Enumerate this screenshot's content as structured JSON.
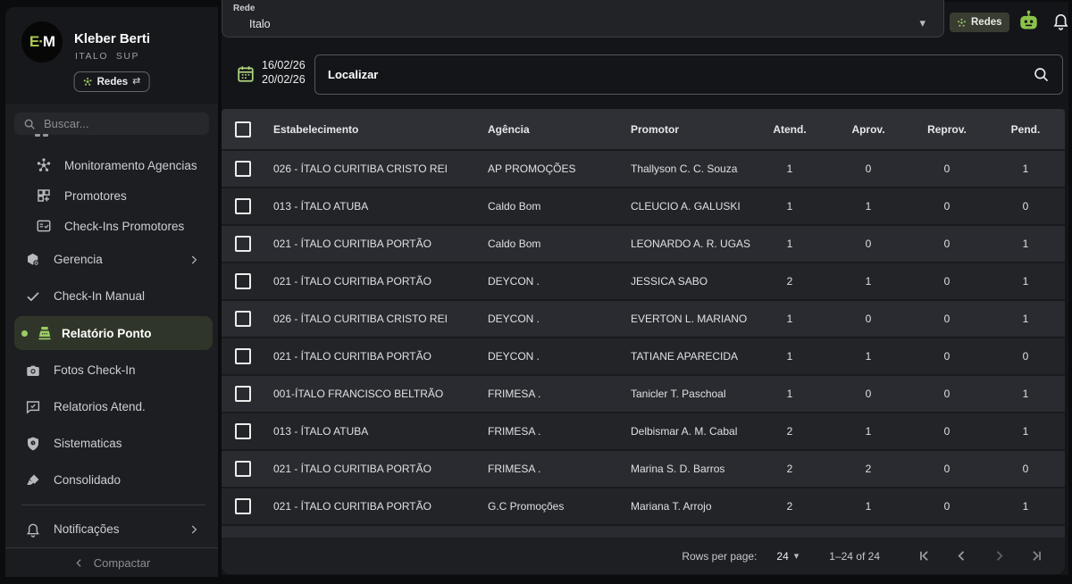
{
  "app": {
    "accent_green": "#9ccc65",
    "active_item_bg": "#2f3629"
  },
  "profile": {
    "name": "Kleber Berti",
    "role": "ITALO  SUP",
    "avatar_left": "E",
    "avatar_dot": "·",
    "avatar_right": "M",
    "badge_label": "Redes",
    "badge_swap_icon": "⇄"
  },
  "sidebar": {
    "search_placeholder": "Buscar...",
    "items": [
      {
        "label": "Monitoramento Agencias",
        "icon": "hub-icon",
        "sub": true
      },
      {
        "label": "Promotores",
        "icon": "widgets-icon",
        "sub": true
      },
      {
        "label": "Check-Ins Promotores",
        "icon": "fact-check-icon",
        "sub": true
      },
      {
        "label": "Gerencia",
        "icon": "cube-icon",
        "chevron": true
      },
      {
        "label": "Check-In Manual",
        "icon": "check-icon"
      },
      {
        "label": "Relatório Ponto",
        "icon": "pos-icon",
        "active": true
      },
      {
        "label": "Fotos Check-In",
        "icon": "camera-icon"
      },
      {
        "label": "Relatorios Atend.",
        "icon": "chat-icon"
      },
      {
        "label": "Sistematicas",
        "icon": "shield-icon"
      },
      {
        "label": "Consolidado",
        "icon": "broom-icon"
      },
      {
        "label": "Notificações",
        "icon": "bell-icon",
        "chevron": true,
        "divider_before": true
      }
    ],
    "collapse_label": "Compactar"
  },
  "topbar": {
    "select_label": "Rede",
    "select_value": "Italo",
    "select_caret": "▾",
    "chip_label": "Redes"
  },
  "filterbar": {
    "date_start": "16/02/26",
    "date_end": "20/02/26",
    "search_label": "Localizar"
  },
  "table": {
    "columns": [
      "Estabelecimento",
      "Agência",
      "Promotor",
      "Atend.",
      "Aprov.",
      "Reprov.",
      "Pend."
    ],
    "rows": [
      [
        "026 - ÍTALO CURITIBA CRISTO REI",
        "AP PROMOÇÕES",
        "Thallyson C. C. Souza",
        "1",
        "0",
        "0",
        "1"
      ],
      [
        "013 - ÍTALO ATUBA",
        "Caldo Bom",
        "CLEUCIO A. GALUSKI",
        "1",
        "1",
        "0",
        "0"
      ],
      [
        "021 - ÍTALO CURITIBA PORTÃO",
        "Caldo Bom",
        "LEONARDO A. R. UGAS",
        "1",
        "0",
        "0",
        "1"
      ],
      [
        "021 - ÍTALO CURITIBA PORTÃO",
        "DEYCON .",
        "JESSICA SABO",
        "2",
        "1",
        "0",
        "1"
      ],
      [
        "026 - ÍTALO CURITIBA CRISTO REI",
        "DEYCON .",
        "EVERTON L. MARIANO",
        "1",
        "0",
        "0",
        "1"
      ],
      [
        "021 - ÍTALO CURITIBA PORTÃO",
        "DEYCON .",
        "TATIANE APARECIDA",
        "1",
        "1",
        "0",
        "0"
      ],
      [
        "001-ÍTALO FRANCISCO BELTRÃO",
        "FRIMESA .",
        "Tanicler T. Paschoal",
        "1",
        "0",
        "0",
        "1"
      ],
      [
        "013 - ÍTALO ATUBA",
        "FRIMESA .",
        "Delbismar A. M. Cabal",
        "2",
        "1",
        "0",
        "1"
      ],
      [
        "021 - ÍTALO CURITIBA PORTÃO",
        "FRIMESA .",
        "Marina S. D. Barros",
        "2",
        "2",
        "0",
        "0"
      ],
      [
        "021 - ÍTALO CURITIBA PORTÃO",
        "G.C Promoções",
        "Mariana T. Arrojo",
        "2",
        "1",
        "0",
        "1"
      ]
    ]
  },
  "pagination": {
    "rows_per_page_label": "Rows per page:",
    "rows_per_page_value": "24",
    "caret": "▾",
    "range_label": "1–24 of 24"
  }
}
